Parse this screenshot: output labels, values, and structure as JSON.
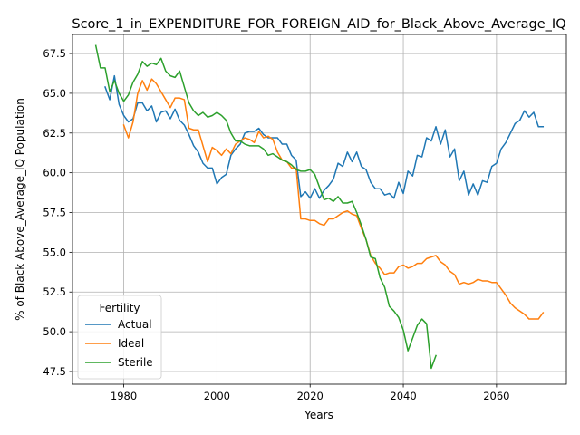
{
  "chart_data": {
    "type": "line",
    "title": "Score_1_in_EXPENDITURE_FOR_FOREIGN_AID_for_Black_Above_Average_IQ",
    "xlabel": "Years",
    "ylabel": "% of Black Above_Average_IQ Population",
    "xlim": [
      1969,
      2075
    ],
    "ylim": [
      46.7,
      68.7
    ],
    "xticks": [
      1980,
      2000,
      2020,
      2040,
      2060
    ],
    "yticks": [
      47.5,
      50.0,
      52.5,
      55.0,
      57.5,
      60.0,
      62.5,
      65.0,
      67.5
    ],
    "xtick_labels": [
      "1980",
      "2000",
      "2020",
      "2040",
      "2060"
    ],
    "ytick_labels": [
      "47.5",
      "50.0",
      "52.5",
      "55.0",
      "57.5",
      "60.0",
      "62.5",
      "65.0",
      "67.5"
    ],
    "grid": true,
    "legend": {
      "title": "Fertility",
      "placement": "lower-left"
    },
    "series": [
      {
        "name": "Actual",
        "color": "#1f77b4",
        "points": [
          [
            1976,
            65.4
          ],
          [
            1977,
            64.6
          ],
          [
            1978,
            66.1
          ],
          [
            1979,
            64.3
          ],
          [
            1980,
            63.6
          ],
          [
            1981,
            63.2
          ],
          [
            1982,
            63.4
          ],
          [
            1983,
            64.4
          ],
          [
            1984,
            64.4
          ],
          [
            1985,
            63.9
          ],
          [
            1986,
            64.2
          ],
          [
            1987,
            63.2
          ],
          [
            1988,
            63.8
          ],
          [
            1989,
            63.9
          ],
          [
            1990,
            63.4
          ],
          [
            1991,
            64.0
          ],
          [
            1992,
            63.3
          ],
          [
            1993,
            63.0
          ],
          [
            1994,
            62.4
          ],
          [
            1995,
            61.7
          ],
          [
            1996,
            61.3
          ],
          [
            1997,
            60.6
          ],
          [
            1998,
            60.3
          ],
          [
            1999,
            60.3
          ],
          [
            2000,
            59.3
          ],
          [
            2001,
            59.7
          ],
          [
            2002,
            59.9
          ],
          [
            2003,
            61.1
          ],
          [
            2004,
            61.5
          ],
          [
            2005,
            61.8
          ],
          [
            2006,
            62.5
          ],
          [
            2007,
            62.6
          ],
          [
            2008,
            62.6
          ],
          [
            2009,
            62.8
          ],
          [
            2010,
            62.4
          ],
          [
            2011,
            62.2
          ],
          [
            2012,
            62.2
          ],
          [
            2013,
            62.2
          ],
          [
            2014,
            61.8
          ],
          [
            2015,
            61.8
          ],
          [
            2016,
            61.1
          ],
          [
            2017,
            60.8
          ],
          [
            2018,
            58.5
          ],
          [
            2019,
            58.8
          ],
          [
            2020,
            58.4
          ],
          [
            2021,
            59.0
          ],
          [
            2022,
            58.4
          ],
          [
            2023,
            58.9
          ],
          [
            2024,
            59.2
          ],
          [
            2025,
            59.6
          ],
          [
            2026,
            60.6
          ],
          [
            2027,
            60.4
          ],
          [
            2028,
            61.3
          ],
          [
            2029,
            60.7
          ],
          [
            2030,
            61.3
          ],
          [
            2031,
            60.4
          ],
          [
            2032,
            60.2
          ],
          [
            2033,
            59.4
          ],
          [
            2034,
            59.0
          ],
          [
            2035,
            59.0
          ],
          [
            2036,
            58.6
          ],
          [
            2037,
            58.7
          ],
          [
            2038,
            58.4
          ],
          [
            2039,
            59.4
          ],
          [
            2040,
            58.7
          ],
          [
            2041,
            60.1
          ],
          [
            2042,
            59.8
          ],
          [
            2043,
            61.1
          ],
          [
            2044,
            61.0
          ],
          [
            2045,
            62.2
          ],
          [
            2046,
            62.0
          ],
          [
            2047,
            62.9
          ],
          [
            2048,
            61.8
          ],
          [
            2049,
            62.7
          ],
          [
            2050,
            61.0
          ],
          [
            2051,
            61.5
          ],
          [
            2052,
            59.5
          ],
          [
            2053,
            60.1
          ],
          [
            2054,
            58.6
          ],
          [
            2055,
            59.3
          ],
          [
            2056,
            58.6
          ],
          [
            2057,
            59.5
          ],
          [
            2058,
            59.4
          ],
          [
            2059,
            60.4
          ],
          [
            2060,
            60.6
          ],
          [
            2061,
            61.5
          ],
          [
            2062,
            61.9
          ],
          [
            2063,
            62.5
          ],
          [
            2064,
            63.1
          ],
          [
            2065,
            63.3
          ],
          [
            2066,
            63.9
          ],
          [
            2067,
            63.5
          ],
          [
            2068,
            63.8
          ],
          [
            2069,
            62.9
          ],
          [
            2070,
            62.9
          ]
        ]
      },
      {
        "name": "Ideal",
        "color": "#ff7f0e",
        "points": [
          [
            1980,
            63.0
          ],
          [
            1981,
            62.2
          ],
          [
            1982,
            63.2
          ],
          [
            1983,
            65.0
          ],
          [
            1984,
            65.8
          ],
          [
            1985,
            65.2
          ],
          [
            1986,
            65.9
          ],
          [
            1987,
            65.6
          ],
          [
            1988,
            65.1
          ],
          [
            1989,
            64.6
          ],
          [
            1990,
            64.1
          ],
          [
            1991,
            64.7
          ],
          [
            1992,
            64.7
          ],
          [
            1993,
            64.6
          ],
          [
            1994,
            62.8
          ],
          [
            1995,
            62.7
          ],
          [
            1996,
            62.7
          ],
          [
            1997,
            61.7
          ],
          [
            1998,
            60.7
          ],
          [
            1999,
            61.6
          ],
          [
            2000,
            61.4
          ],
          [
            2001,
            61.1
          ],
          [
            2002,
            61.5
          ],
          [
            2003,
            61.2
          ],
          [
            2004,
            61.8
          ],
          [
            2005,
            62.0
          ],
          [
            2006,
            62.2
          ],
          [
            2007,
            62.1
          ],
          [
            2008,
            61.9
          ],
          [
            2009,
            62.6
          ],
          [
            2010,
            62.2
          ],
          [
            2011,
            62.3
          ],
          [
            2012,
            62.1
          ],
          [
            2013,
            61.3
          ],
          [
            2014,
            60.8
          ],
          [
            2015,
            60.7
          ],
          [
            2016,
            60.3
          ],
          [
            2017,
            60.3
          ],
          [
            2018,
            57.1
          ],
          [
            2019,
            57.1
          ],
          [
            2020,
            57.0
          ],
          [
            2021,
            57.0
          ],
          [
            2022,
            56.8
          ],
          [
            2023,
            56.7
          ],
          [
            2024,
            57.1
          ],
          [
            2025,
            57.1
          ],
          [
            2026,
            57.3
          ],
          [
            2027,
            57.5
          ],
          [
            2028,
            57.6
          ],
          [
            2029,
            57.4
          ],
          [
            2030,
            57.3
          ],
          [
            2031,
            56.5
          ],
          [
            2032,
            55.8
          ],
          [
            2033,
            54.8
          ],
          [
            2034,
            54.3
          ],
          [
            2035,
            54.0
          ],
          [
            2036,
            53.6
          ],
          [
            2037,
            53.7
          ],
          [
            2038,
            53.7
          ],
          [
            2039,
            54.1
          ],
          [
            2040,
            54.2
          ],
          [
            2041,
            54.0
          ],
          [
            2042,
            54.1
          ],
          [
            2043,
            54.3
          ],
          [
            2044,
            54.3
          ],
          [
            2045,
            54.6
          ],
          [
            2046,
            54.7
          ],
          [
            2047,
            54.8
          ],
          [
            2048,
            54.4
          ],
          [
            2049,
            54.2
          ],
          [
            2050,
            53.8
          ],
          [
            2051,
            53.6
          ],
          [
            2052,
            53.0
          ],
          [
            2053,
            53.1
          ],
          [
            2054,
            53.0
          ],
          [
            2055,
            53.1
          ],
          [
            2056,
            53.3
          ],
          [
            2057,
            53.2
          ],
          [
            2058,
            53.2
          ],
          [
            2059,
            53.1
          ],
          [
            2060,
            53.1
          ],
          [
            2061,
            52.7
          ],
          [
            2062,
            52.3
          ],
          [
            2063,
            51.8
          ],
          [
            2064,
            51.5
          ],
          [
            2065,
            51.3
          ],
          [
            2066,
            51.1
          ],
          [
            2067,
            50.8
          ],
          [
            2068,
            50.8
          ],
          [
            2069,
            50.8
          ],
          [
            2070,
            51.2
          ]
        ]
      },
      {
        "name": "Sterile",
        "color": "#2ca02c",
        "points": [
          [
            1974,
            68.0
          ],
          [
            1975,
            66.6
          ],
          [
            1976,
            66.6
          ],
          [
            1977,
            65.1
          ],
          [
            1978,
            65.8
          ],
          [
            1979,
            65.0
          ],
          [
            1980,
            64.5
          ],
          [
            1981,
            64.9
          ],
          [
            1982,
            65.7
          ],
          [
            1983,
            66.2
          ],
          [
            1984,
            67.0
          ],
          [
            1985,
            66.7
          ],
          [
            1986,
            66.9
          ],
          [
            1987,
            66.8
          ],
          [
            1988,
            67.2
          ],
          [
            1989,
            66.4
          ],
          [
            1990,
            66.1
          ],
          [
            1991,
            66.0
          ],
          [
            1992,
            66.4
          ],
          [
            1993,
            65.4
          ],
          [
            1994,
            64.4
          ],
          [
            1995,
            63.9
          ],
          [
            1996,
            63.6
          ],
          [
            1997,
            63.8
          ],
          [
            1998,
            63.5
          ],
          [
            1999,
            63.6
          ],
          [
            2000,
            63.8
          ],
          [
            2001,
            63.6
          ],
          [
            2002,
            63.3
          ],
          [
            2003,
            62.5
          ],
          [
            2004,
            62.0
          ],
          [
            2005,
            62.0
          ],
          [
            2006,
            61.8
          ],
          [
            2007,
            61.7
          ],
          [
            2008,
            61.7
          ],
          [
            2009,
            61.7
          ],
          [
            2010,
            61.5
          ],
          [
            2011,
            61.1
          ],
          [
            2012,
            61.2
          ],
          [
            2013,
            61.0
          ],
          [
            2014,
            60.8
          ],
          [
            2015,
            60.7
          ],
          [
            2016,
            60.5
          ],
          [
            2017,
            60.2
          ],
          [
            2018,
            60.1
          ],
          [
            2019,
            60.1
          ],
          [
            2020,
            60.2
          ],
          [
            2021,
            59.9
          ],
          [
            2022,
            59.1
          ],
          [
            2023,
            58.3
          ],
          [
            2024,
            58.4
          ],
          [
            2025,
            58.2
          ],
          [
            2026,
            58.5
          ],
          [
            2027,
            58.1
          ],
          [
            2028,
            58.1
          ],
          [
            2029,
            58.2
          ],
          [
            2030,
            57.5
          ],
          [
            2031,
            56.7
          ],
          [
            2032,
            55.8
          ],
          [
            2033,
            54.7
          ],
          [
            2034,
            54.6
          ],
          [
            2035,
            53.4
          ],
          [
            2036,
            52.8
          ],
          [
            2037,
            51.6
          ],
          [
            2038,
            51.3
          ],
          [
            2039,
            50.9
          ],
          [
            2040,
            50.1
          ],
          [
            2041,
            48.8
          ],
          [
            2042,
            49.6
          ],
          [
            2043,
            50.4
          ],
          [
            2044,
            50.8
          ],
          [
            2045,
            50.5
          ],
          [
            2046,
            47.7
          ],
          [
            2047,
            48.5
          ]
        ]
      }
    ]
  }
}
